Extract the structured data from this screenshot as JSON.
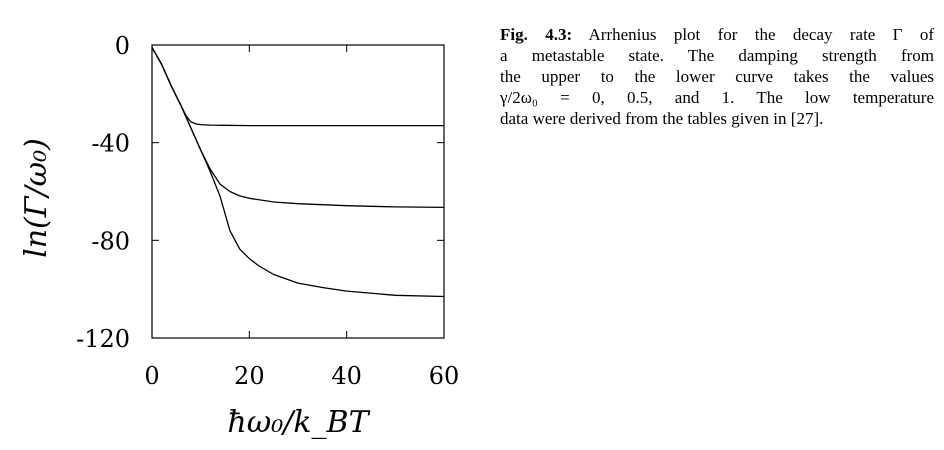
{
  "chart_data": {
    "type": "line",
    "xlabel": "ħω₀/k_BT",
    "ylabel": "ln(Γ/ω₀)",
    "xlim": [
      0,
      60
    ],
    "ylim": [
      -120,
      0
    ],
    "x_ticks": [
      "0",
      "20",
      "40",
      "60"
    ],
    "y_ticks": [
      "0",
      "-40",
      "-80",
      "-120"
    ],
    "grid": false,
    "series": [
      {
        "x": [
          0,
          2,
          4,
          6,
          7,
          8,
          9,
          10,
          12,
          15,
          20,
          30,
          40,
          50,
          60
        ],
        "y": [
          -1,
          -8,
          -17,
          -25,
          -29,
          -31.5,
          -32.3,
          -32.6,
          -32.8,
          -32.9,
          -33,
          -33,
          -33,
          -33,
          -33
        ]
      },
      {
        "x": [
          0,
          2,
          4,
          6,
          8,
          10,
          12,
          14,
          16,
          18,
          20,
          25,
          30,
          40,
          50,
          60
        ],
        "y": [
          -1,
          -8,
          -17,
          -25,
          -34,
          -43,
          -51,
          -57,
          -60,
          -61.8,
          -62.8,
          -64.3,
          -65,
          -65.8,
          -66.3,
          -66.5
        ]
      },
      {
        "x": [
          0,
          2,
          4,
          6,
          8,
          10,
          12,
          14,
          16,
          18,
          20,
          22,
          25,
          30,
          35,
          40,
          50,
          60
        ],
        "y": [
          -1,
          -8,
          -17,
          -25,
          -34,
          -43,
          -52,
          -62,
          -76,
          -83.5,
          -87.5,
          -90.5,
          -94,
          -97.5,
          -99.3,
          -100.8,
          -102.5,
          -103
        ]
      }
    ]
  },
  "caption": {
    "label": "Fig. 4.3:",
    "lines": [
      "Arrhenius plot for the decay rate Γ of",
      "a metastable state. The damping strength from",
      "the upper to the lower curve takes the values",
      "γ/2ω₀ = 0, 0.5, and 1.  The low temperature",
      "data were derived from the tables given in [27]."
    ]
  }
}
